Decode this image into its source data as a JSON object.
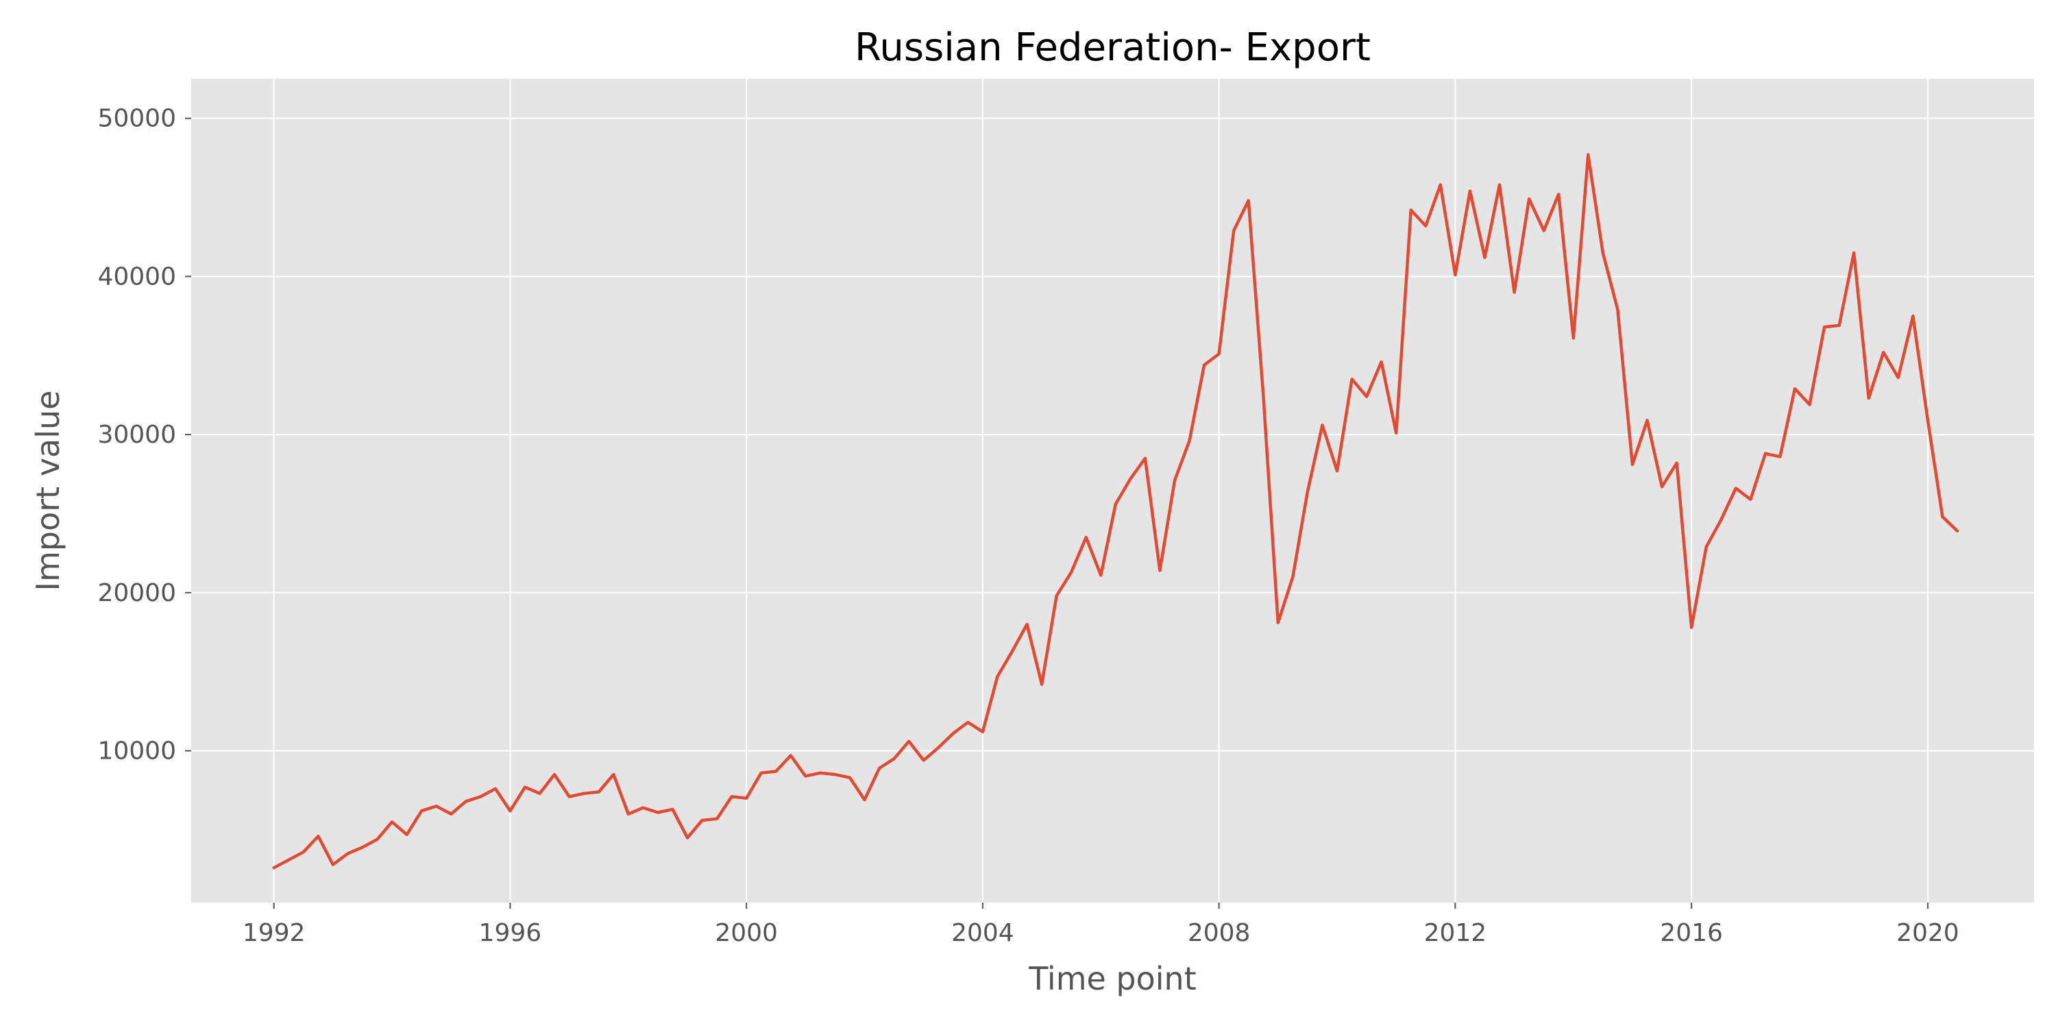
{
  "chart_data": {
    "type": "line",
    "title": "Russian Federation- Export",
    "xlabel": "Time point",
    "ylabel": "Import value",
    "x_ticks": [
      "1992",
      "1996",
      "2000",
      "2004",
      "2008",
      "2012",
      "2016",
      "2020"
    ],
    "y_ticks": [
      "10000",
      "20000",
      "30000",
      "40000",
      "50000"
    ],
    "xlim": [
      1990.6,
      2021.8
    ],
    "ylim": [
      400,
      52500
    ],
    "grid": true,
    "legend": "none",
    "colors": {
      "line": "#E24A33",
      "plot_background": "#E5E5E5",
      "grid": "#FFFFFF"
    },
    "series": [
      {
        "x": [
          1992.0,
          1992.25,
          1992.5,
          1992.75,
          1993.0,
          1993.25,
          1993.5,
          1993.75,
          1994.0,
          1994.25,
          1994.5,
          1994.75,
          1995.0,
          1995.25,
          1995.5,
          1995.75,
          1996.0,
          1996.25,
          1996.5,
          1996.75,
          1997.0,
          1997.25,
          1997.5,
          1997.75,
          1998.0,
          1998.25,
          1998.5,
          1998.75,
          1999.0,
          1999.25,
          1999.5,
          1999.75,
          2000.0,
          2000.25,
          2000.5,
          2000.75,
          2001.0,
          2001.25,
          2001.5,
          2001.75,
          2002.0,
          2002.25,
          2002.5,
          2002.75,
          2003.0,
          2003.25,
          2003.5,
          2003.75,
          2004.0,
          2004.25,
          2004.5,
          2004.75,
          2005.0,
          2005.25,
          2005.5,
          2005.75,
          2006.0,
          2006.25,
          2006.5,
          2006.75,
          2007.0,
          2007.25,
          2007.5,
          2007.75,
          2008.0,
          2008.25,
          2008.5,
          2008.75,
          2009.0,
          2009.25,
          2009.5,
          2009.75,
          2010.0,
          2010.25,
          2010.5,
          2010.75,
          2011.0,
          2011.25,
          2011.5,
          2011.75,
          2012.0,
          2012.25,
          2012.5,
          2012.75,
          2013.0,
          2013.25,
          2013.5,
          2013.75,
          2014.0,
          2014.25,
          2014.5,
          2014.75,
          2015.0,
          2015.25,
          2015.5,
          2015.75,
          2016.0,
          2016.25,
          2016.5,
          2016.75,
          2017.0,
          2017.25,
          2017.5,
          2017.75,
          2018.0,
          2018.25,
          2018.5,
          2018.75,
          2019.0,
          2019.25,
          2019.5,
          2019.75,
          2020.0,
          2020.25,
          2020.5
        ],
        "y": [
          2600,
          3100,
          3600,
          4600,
          2800,
          3500,
          3900,
          4400,
          5500,
          4700,
          6200,
          6500,
          6000,
          6800,
          7100,
          7600,
          6200,
          7700,
          7300,
          8500,
          7100,
          7300,
          7400,
          8500,
          6000,
          6400,
          6100,
          6300,
          4500,
          5600,
          5700,
          7100,
          7000,
          8600,
          8700,
          9700,
          8400,
          8600,
          8500,
          8300,
          6900,
          8900,
          9500,
          10600,
          9400,
          10200,
          11100,
          11800,
          11200,
          14700,
          16300,
          18000,
          14200,
          19800,
          21300,
          23500,
          21100,
          25600,
          27200,
          28500,
          21400,
          27100,
          29600,
          34400,
          35100,
          42900,
          44800,
          32500,
          18100,
          21000,
          26400,
          30600,
          27700,
          33500,
          32400,
          34600,
          30100,
          44200,
          43200,
          45800,
          40100,
          45400,
          41200,
          45800,
          39000,
          44900,
          42900,
          45200,
          36100,
          47700,
          41500,
          37900,
          28100,
          30900,
          26700,
          28200,
          17800,
          22900,
          24600,
          26600,
          25900,
          28800,
          28600,
          32900,
          31900,
          36800,
          36900,
          41500,
          32300,
          35200,
          33600,
          37500,
          30900,
          24800,
          23900
        ]
      }
    ]
  }
}
